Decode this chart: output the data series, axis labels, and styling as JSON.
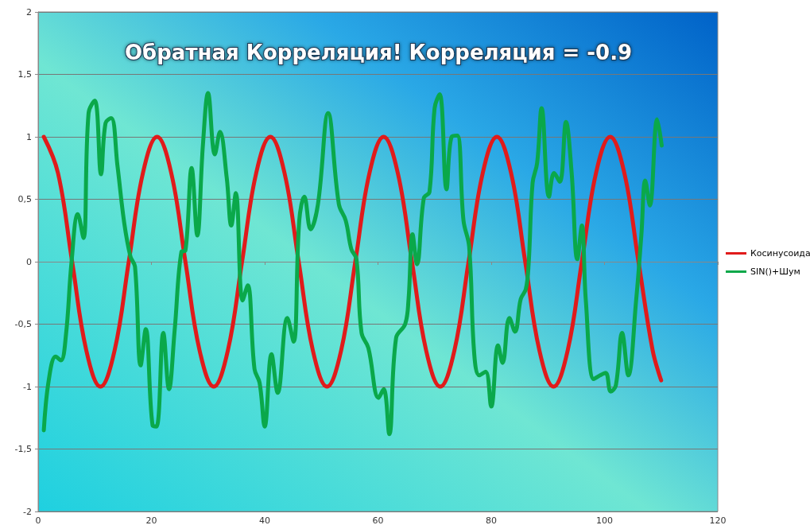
{
  "chart_data": {
    "type": "line",
    "title": "Обратная Корреляция! Корреляция = -0.9",
    "xlim": [
      0,
      120
    ],
    "xticks": [
      0,
      20,
      40,
      60,
      80,
      100,
      120
    ],
    "ylim": [
      -2,
      2
    ],
    "yticks": [
      {
        "value": -2,
        "label": "-2"
      },
      {
        "value": -1.5,
        "label": "-1,5"
      },
      {
        "value": -1,
        "label": "-1"
      },
      {
        "value": -0.5,
        "label": "-0,5"
      },
      {
        "value": 0,
        "label": "0"
      },
      {
        "value": 0.5,
        "label": "0,5"
      },
      {
        "value": 1,
        "label": "1"
      },
      {
        "value": 1.5,
        "label": "1,5"
      },
      {
        "value": 2,
        "label": "2"
      }
    ],
    "grid": "y",
    "legend": "right",
    "marker": "none",
    "line_style": "solid",
    "series": [
      {
        "name": "Косинусоида",
        "color": "#e01b1b",
        "x": [
          1,
          3.5,
          6,
          8.5,
          11,
          13.5,
          16,
          18.5,
          21,
          23.5,
          26,
          28.5,
          31,
          33.5,
          36,
          38.5,
          41,
          43.5,
          46,
          48.5,
          51,
          53.5,
          56,
          58.5,
          61,
          63.5,
          66,
          68.5,
          71,
          73.5,
          76,
          78.5,
          81,
          83.5,
          86,
          88.5,
          91,
          93.5,
          96,
          98.5,
          101,
          103.5,
          106,
          108.5,
          110
        ],
        "values": [
          1,
          0.71,
          0,
          -0.71,
          -1,
          -0.71,
          0,
          0.71,
          1,
          0.71,
          0,
          -0.71,
          -1,
          -0.71,
          0,
          0.71,
          1,
          0.71,
          0,
          -0.71,
          -1,
          -0.71,
          0,
          0.71,
          1,
          0.71,
          0,
          -0.71,
          -1,
          -0.71,
          0,
          0.71,
          1,
          0.71,
          0,
          -0.71,
          -1,
          -0.71,
          0,
          0.71,
          1,
          0.71,
          0,
          -0.71,
          -0.95
        ]
      },
      {
        "name": "SIN()+Шум",
        "color": "#0aa84a",
        "x": [
          1,
          1.9,
          3.1,
          4,
          4.9,
          5.9,
          7,
          8,
          8.9,
          10,
          11.1,
          11.9,
          12.9,
          14,
          15.2,
          16.3,
          17.1,
          18.1,
          19,
          20.2,
          20.9,
          22.1,
          23.1,
          24.1,
          25.3,
          26,
          27.1,
          28.1,
          29.1,
          30,
          31.2,
          32.1,
          33.3,
          34.1,
          34.9,
          36.1,
          37,
          38.2,
          39.1,
          40,
          41.2,
          42.3,
          44,
          45.1,
          46.1,
          47,
          48.1,
          49.4,
          51.2,
          53.1,
          54.3,
          55.3,
          56.2,
          57.1,
          58.3,
          60.1,
          61,
          62,
          63.2,
          64.8,
          65.4,
          66.1,
          66.9,
          68.1,
          69.1,
          70,
          70.9,
          72.1,
          73,
          74,
          75.1,
          76.1,
          77,
          77.9,
          79,
          80,
          81.2,
          82,
          83.2,
          84.2,
          85.2,
          86.1,
          86.6,
          87.3,
          88.1,
          88.9,
          90.2,
          91.1,
          92.1,
          93.2,
          94.2,
          95.2,
          96,
          96.7,
          98.1,
          99.2,
          100.2,
          101.1,
          102,
          103.1,
          104.2,
          105.6,
          106.5,
          107.2,
          108,
          109.3,
          110.1
        ],
        "values": [
          -1.35,
          -0.94,
          -0.76,
          -0.79,
          -0.59,
          0,
          0.38,
          0.19,
          1.19,
          1.29,
          0.7,
          1.11,
          1.15,
          0.77,
          0.31,
          0.04,
          -0.04,
          -0.83,
          -0.54,
          -1.31,
          -1.32,
          -0.57,
          -1.02,
          -0.55,
          0.08,
          0.09,
          0.75,
          0.21,
          0.94,
          1.35,
          0.86,
          1.04,
          0.67,
          0.29,
          0.55,
          -0.31,
          -0.19,
          -0.86,
          -0.97,
          -1.32,
          -0.74,
          -1.05,
          -0.45,
          -0.64,
          0.33,
          0.52,
          0.26,
          0.46,
          1.19,
          0.46,
          0.33,
          0.1,
          0.02,
          -0.57,
          -0.69,
          -1.09,
          -1.02,
          -1.38,
          -0.61,
          -0.5,
          -0.3,
          0.22,
          -0.02,
          0.51,
          0.56,
          1.23,
          1.34,
          0.58,
          1,
          1.01,
          0.33,
          0.12,
          -0.74,
          -0.91,
          -0.88,
          -1.16,
          -0.67,
          -0.81,
          -0.45,
          -0.56,
          -0.3,
          -0.22,
          -0.02,
          0.63,
          0.79,
          1.23,
          0.52,
          0.71,
          0.64,
          1.12,
          0.71,
          0.02,
          0.29,
          -0.31,
          -0.94,
          -0.91,
          -0.89,
          -1.04,
          -0.99,
          -0.57,
          -0.91,
          -0.3,
          0.21,
          0.65,
          0.45,
          1.14,
          0.93
        ]
      }
    ]
  }
}
